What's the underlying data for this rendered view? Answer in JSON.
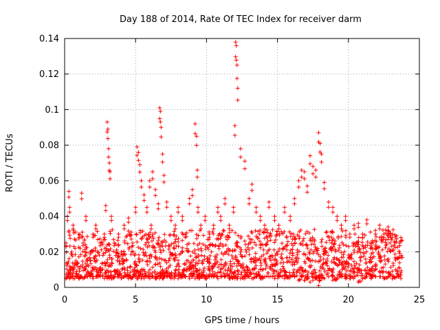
{
  "chart_data": {
    "type": "scatter",
    "title": "Day 188 of 2014, Rate Of TEC Index for receiver darm",
    "xlabel": "GPS time / hours",
    "ylabel": "ROTI / TECUs",
    "xlim": [
      0,
      25
    ],
    "ylim": [
      0,
      0.14
    ],
    "x_ticks": [
      0,
      5,
      10,
      15,
      20,
      25
    ],
    "y_ticks": [
      0,
      0.02,
      0.04,
      0.06,
      0.08,
      0.1,
      0.12,
      0.14
    ],
    "x_tick_labels": [
      "0",
      "5",
      "10",
      "15",
      "20",
      "25"
    ],
    "y_tick_labels": [
      "0",
      "0.02",
      "0.04",
      "0.06",
      "0.08",
      "0.1",
      "0.12",
      "0.14"
    ],
    "grid": true,
    "marker": "+",
    "color": "#ff0000",
    "series": [
      {
        "name": "ROTI",
        "x": [
          0.1,
          0.2,
          0.3,
          0.35,
          0.5,
          0.6,
          0.8,
          1.0,
          1.2,
          1.3,
          1.5,
          1.8,
          2.0,
          2.2,
          2.5,
          2.8,
          2.9,
          3.0,
          3.05,
          3.1,
          3.15,
          3.2,
          3.3,
          3.5,
          3.8,
          4.0,
          4.2,
          4.5,
          4.8,
          5.0,
          5.1,
          5.2,
          5.3,
          5.4,
          5.6,
          5.8,
          6.0,
          6.1,
          6.2,
          6.4,
          6.6,
          6.7,
          6.75,
          6.8,
          6.9,
          7.0,
          7.2,
          7.5,
          7.8,
          8.0,
          8.3,
          8.5,
          8.8,
          9.0,
          9.2,
          9.3,
          9.35,
          9.4,
          9.6,
          9.9,
          10.2,
          10.5,
          10.8,
          11.0,
          11.3,
          11.6,
          11.9,
          12.0,
          12.05,
          12.1,
          12.15,
          12.2,
          12.4,
          12.7,
          13.0,
          13.2,
          13.5,
          13.8,
          14.1,
          14.4,
          14.8,
          15.1,
          15.5,
          15.9,
          16.2,
          16.5,
          16.7,
          16.9,
          17.1,
          17.3,
          17.5,
          17.7,
          17.9,
          18.0,
          18.1,
          18.3,
          18.6,
          18.9,
          19.2,
          19.5,
          19.8,
          20.1,
          20.4,
          20.7,
          21.0,
          21.3,
          21.6,
          21.9,
          22.2,
          22.5,
          22.8,
          23.1,
          23.4,
          23.7
        ],
        "y": [
          0.025,
          0.04,
          0.054,
          0.045,
          0.02,
          0.035,
          0.015,
          0.03,
          0.053,
          0.025,
          0.04,
          0.02,
          0.03,
          0.035,
          0.025,
          0.03,
          0.046,
          0.093,
          0.089,
          0.078,
          0.07,
          0.065,
          0.04,
          0.025,
          0.03,
          0.02,
          0.035,
          0.039,
          0.025,
          0.045,
          0.079,
          0.076,
          0.069,
          0.06,
          0.052,
          0.045,
          0.06,
          0.035,
          0.065,
          0.055,
          0.047,
          0.101,
          0.099,
          0.09,
          0.075,
          0.063,
          0.048,
          0.04,
          0.035,
          0.045,
          0.04,
          0.03,
          0.05,
          0.055,
          0.092,
          0.085,
          0.066,
          0.045,
          0.035,
          0.04,
          0.03,
          0.035,
          0.045,
          0.04,
          0.05,
          0.035,
          0.045,
          0.091,
          0.138,
          0.136,
          0.125,
          0.112,
          0.078,
          0.071,
          0.05,
          0.058,
          0.045,
          0.04,
          0.035,
          0.048,
          0.04,
          0.035,
          0.045,
          0.04,
          0.05,
          0.06,
          0.066,
          0.065,
          0.057,
          0.074,
          0.068,
          0.066,
          0.087,
          0.081,
          0.075,
          0.059,
          0.048,
          0.045,
          0.04,
          0.035,
          0.04,
          0.03,
          0.035,
          0.036,
          0.03,
          0.038,
          0.025,
          0.032,
          0.035,
          0.03,
          0.034,
          0.03,
          0.029,
          0.028
        ],
        "baseline_min": [
          0.005,
          0.006,
          0.006,
          0.005,
          0.006,
          0.005,
          0.006,
          0.005,
          0.006,
          0.005,
          0.006,
          0.006,
          0.005,
          0.006,
          0.006,
          0.005,
          0.006,
          0.005,
          0.006,
          0.006,
          0.005,
          0.006,
          0.005,
          0.006,
          0.006,
          0.005,
          0.006,
          0.005,
          0.006,
          0.006,
          0.005,
          0.006,
          0.006,
          0.005,
          0.006,
          0.006,
          0.005,
          0.006,
          0.006,
          0.005,
          0.006,
          0.005,
          0.006,
          0.006,
          0.005,
          0.006,
          0.006,
          0.005,
          0.006,
          0.005,
          0.006,
          0.006,
          0.005,
          0.006,
          0.005,
          0.006,
          0.006,
          0.005,
          0.006,
          0.005,
          0.006,
          0.006,
          0.005,
          0.006,
          0.006,
          0.005,
          0.006,
          0.005,
          0.006,
          0.006,
          0.005,
          0.006,
          0.005,
          0.006,
          0.006,
          0.005,
          0.006,
          0.005,
          0.006,
          0.006,
          0.005,
          0.006,
          0.005,
          0.006,
          0.006,
          0.004,
          0.006,
          0.004,
          0.005,
          0.003,
          0.004,
          0.005,
          0.001,
          0.004,
          0.005,
          0.005,
          0.006,
          0.004,
          0.005,
          0.006,
          0.005,
          0.005,
          0.006,
          0.003,
          0.005,
          0.006,
          0.005,
          0.006,
          0.006,
          0.005,
          0.006,
          0.005,
          0.006,
          0.005
        ]
      }
    ]
  }
}
